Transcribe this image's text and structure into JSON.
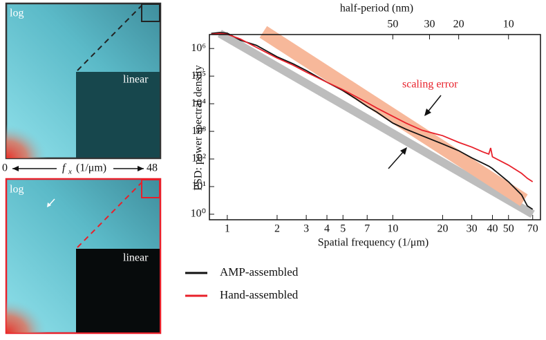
{
  "panels": {
    "top": {
      "outer_label": "log",
      "inner_label": "linear"
    },
    "axis": {
      "start": "0",
      "symbol": "f",
      "subscript": "x",
      "unit": "(1/μm)",
      "end": "48"
    },
    "bottom": {
      "outer_label": "log",
      "inner_label": "linear"
    }
  },
  "chart_data": {
    "type": "line",
    "x_label": "Spatial frequency (1/μm)",
    "y_label": "PSD: power spectral density",
    "x2_label": "half-period (nm)",
    "log_x": true,
    "log_y": true,
    "xlim": [
      0.78,
      78
    ],
    "ylim": [
      0.63,
      3200000
    ],
    "x2lim": [
      641,
      6.41
    ],
    "xticks": [
      1,
      2,
      3,
      4,
      5,
      7,
      10,
      20,
      30,
      40,
      50,
      70
    ],
    "x2ticks": [
      50,
      30,
      20,
      10
    ],
    "yticks": [
      {
        "value": 1,
        "label": "10⁰"
      },
      {
        "value": 10,
        "label": "10¹"
      },
      {
        "value": 100,
        "label": "10²"
      },
      {
        "value": 1000,
        "label": "10³"
      },
      {
        "value": 10000,
        "label": "10⁴"
      },
      {
        "value": 100000,
        "label": "10⁵"
      },
      {
        "value": 1000000,
        "label": "10⁶"
      }
    ],
    "x": [
      0.8,
      0.9,
      1,
      1.2,
      1.5,
      2,
      2.5,
      3,
      4,
      5,
      6,
      7,
      8,
      10,
      12,
      15,
      20,
      25,
      30,
      35,
      38,
      39,
      40,
      50,
      60,
      65,
      70
    ],
    "series": [
      {
        "name": "AMP-assembled",
        "color": "#111111",
        "values": [
          3500000,
          3800000,
          3600000,
          2000000,
          1300000,
          500000,
          280000,
          160000,
          60000,
          30000,
          15000,
          8000,
          5000,
          2000,
          1200,
          700,
          350,
          200,
          110,
          70,
          55,
          50,
          45,
          15,
          5,
          2,
          1.5
        ]
      },
      {
        "name": "Hand-assembled",
        "color": "#e8202a",
        "values": [
          3300000,
          3500000,
          3300000,
          2200000,
          1100000,
          450000,
          250000,
          140000,
          60000,
          32000,
          18000,
          11000,
          7000,
          3500,
          2000,
          1100,
          700,
          400,
          270,
          180,
          150,
          250,
          120,
          60,
          30,
          20,
          15
        ]
      }
    ],
    "bands": [
      {
        "color": "#bdbdbd",
        "x": [
          0.9,
          70
        ],
        "values": [
          3500000,
          1
        ]
      },
      {
        "color": "#f7b89a",
        "x": [
          1.65,
          62
        ],
        "values": [
          4000000,
          3.2
        ]
      }
    ],
    "annotation": "scaling error"
  }
}
